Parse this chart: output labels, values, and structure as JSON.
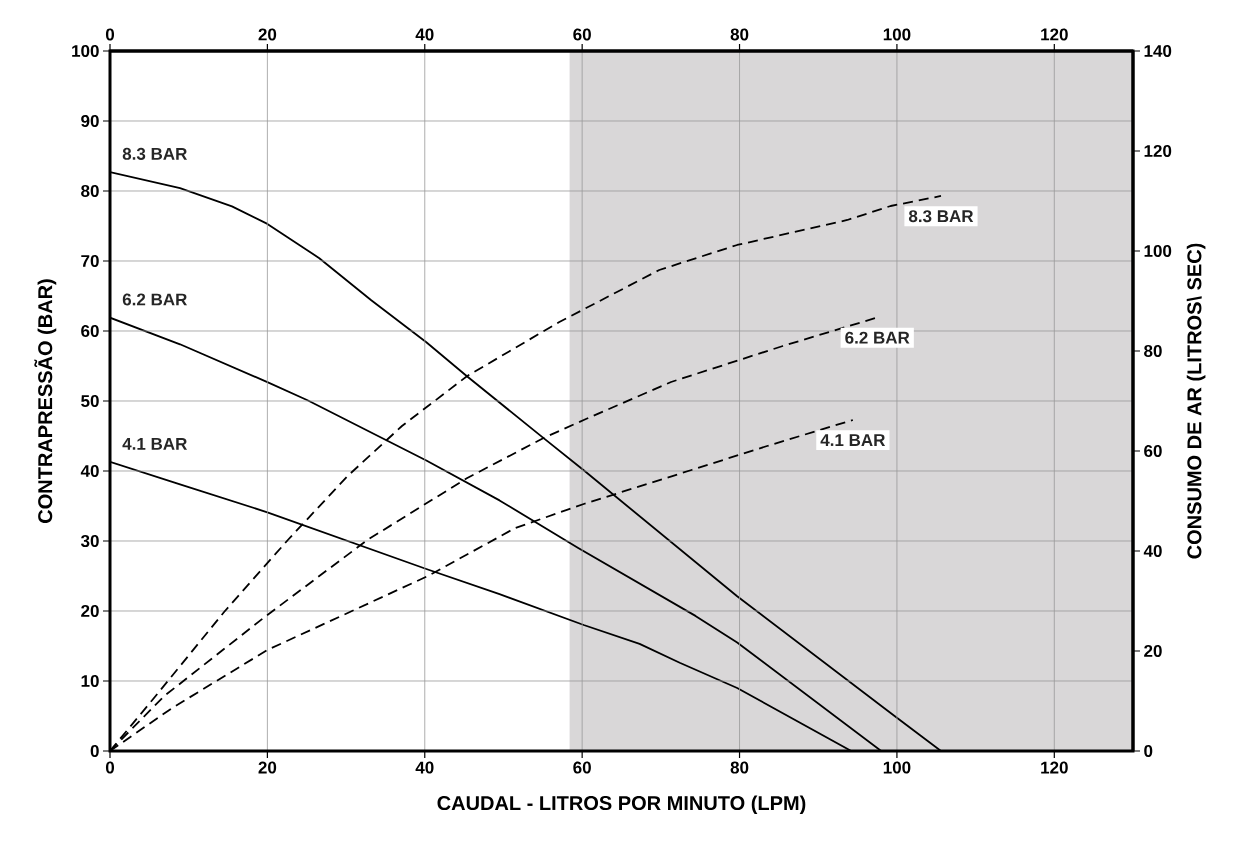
{
  "chart_data": {
    "type": "line",
    "xlabel": "CAUDAL - LITROS POR MINUTO (LPM)",
    "ylabel": "CONTRAPRESSÃO  (BAR)",
    "y2label": "CONSUMO DE AR (LITROS\\ SEC)",
    "xlim": [
      0,
      130
    ],
    "xticks": [
      0,
      20,
      40,
      60,
      80,
      100,
      120
    ],
    "x2lim": [
      0,
      130
    ],
    "x2ticks": [
      0,
      20,
      40,
      60,
      80,
      100,
      120
    ],
    "ylim": [
      0,
      100
    ],
    "yticks": [
      0,
      10,
      20,
      30,
      40,
      50,
      60,
      70,
      80,
      90,
      100
    ],
    "y2lim": [
      0,
      140
    ],
    "y2ticks": [
      0,
      20,
      40,
      60,
      80,
      100,
      120,
      140
    ],
    "grid": true,
    "marker": "none",
    "bands": [
      {
        "axis": "x",
        "from": 58.4,
        "to": 130,
        "color": "#d9d7d8"
      }
    ],
    "series": [
      {
        "name": "8.3 BAR",
        "color": "#000000",
        "line_style": "solid",
        "x": [
          0,
          8.9,
          15.5,
          20,
          26.6,
          33.2,
          40.2,
          45.4,
          55.1,
          60.2,
          79.7,
          99.7,
          105.6
        ],
        "values": [
          82.7,
          80.4,
          77.8,
          75.3,
          70.4,
          64.4,
          58.4,
          53.5,
          44.7,
          40.1,
          22.1,
          5,
          0
        ]
      },
      {
        "name": "6.2 BAR",
        "color": "#000000",
        "line_style": "solid",
        "x": [
          0,
          8.9,
          20,
          25.1,
          40.2,
          49.5,
          59.5,
          74.4,
          79.7,
          98
        ],
        "values": [
          61.9,
          58.1,
          52.7,
          50.1,
          41.5,
          35.8,
          29,
          19.3,
          15.5,
          0
        ]
      },
      {
        "name": "4.1 BAR",
        "color": "#000000",
        "line_style": "solid",
        "x": [
          0,
          8.9,
          20,
          40.2,
          49.5,
          60.2,
          67.3,
          72.4,
          79.7,
          94.2
        ],
        "values": [
          41.3,
          38.1,
          34.1,
          26,
          22.4,
          18,
          15.3,
          12.6,
          9,
          0
        ]
      },
      {
        "name": "8.3 BAR",
        "color": "#000000",
        "line_style": "dashed",
        "axis": "y2",
        "x": [
          0,
          5.8,
          14.5,
          22.6,
          30.2,
          37.1,
          45.4,
          57.1,
          69.8,
          79.7,
          93.7,
          99.2,
          105.6
        ],
        "values": [
          0,
          11,
          27.8,
          42.2,
          55,
          65,
          75,
          85.8,
          96.2,
          101.2,
          106.2,
          109,
          111
        ]
      },
      {
        "name": "6.2 BAR",
        "color": "#000000",
        "line_style": "dashed",
        "axis": "y2",
        "x": [
          0,
          6.9,
          19.5,
          32.7,
          45.4,
          55.1,
          60.2,
          71.3,
          85.5,
          97.5
        ],
        "values": [
          0,
          11,
          26.6,
          42.2,
          54.6,
          62.6,
          66.2,
          73.8,
          81,
          86.7
        ]
      },
      {
        "name": "4.1 BAR",
        "color": "#000000",
        "line_style": "dashed",
        "axis": "y2",
        "x": [
          0,
          7.9,
          20,
          40.4,
          51.5,
          60.2,
          73.9,
          83.5,
          94.4
        ],
        "values": [
          0,
          8.6,
          20.2,
          35,
          44.6,
          49.4,
          56.2,
          61,
          66.2
        ]
      }
    ]
  }
}
